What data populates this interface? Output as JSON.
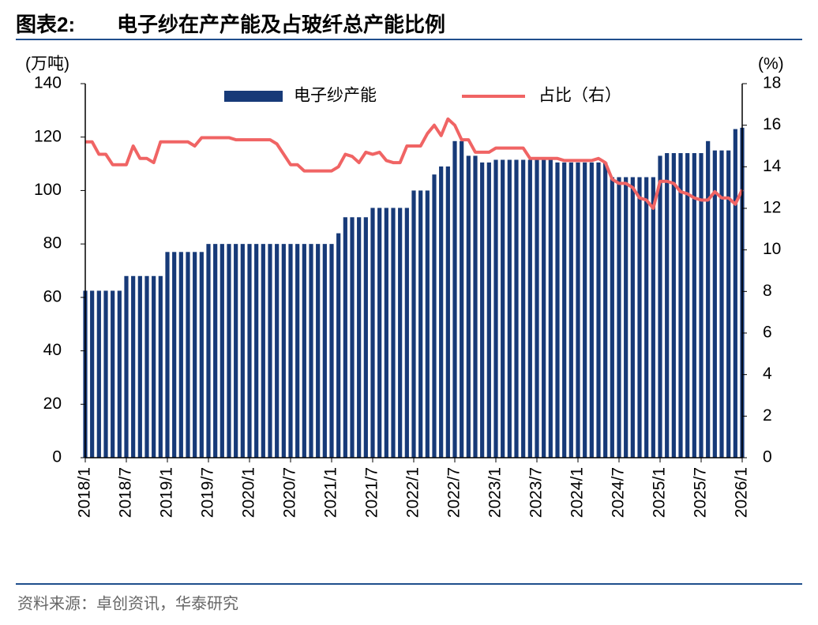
{
  "chart_data": {
    "type": "bar_line",
    "figure_label": "图表2:",
    "title": "电子纱在产产能及占玻纤总产能比例",
    "y_label": "(万吨)",
    "y2_label": "(%)",
    "source": "资料来源：卓创资讯，华泰研究",
    "categories": [
      "2018/1",
      null,
      null,
      null,
      null,
      null,
      "2018/7",
      null,
      null,
      null,
      null,
      null,
      "2019/1",
      null,
      null,
      null,
      null,
      null,
      "2019/7",
      null,
      null,
      null,
      null,
      null,
      "2020/1",
      null,
      null,
      null,
      null,
      null,
      "2020/7",
      null,
      null,
      null,
      null,
      null,
      "2021/1",
      null,
      null,
      null,
      null,
      null,
      "2021/7",
      null,
      null,
      null,
      null,
      null,
      "2022/1",
      null,
      null,
      null,
      null,
      null,
      "2022/7",
      null,
      null,
      null,
      null,
      null,
      "2023/1",
      null,
      null,
      null,
      null,
      null,
      "2023/7",
      null,
      null,
      null,
      null,
      null,
      "2024/1",
      null,
      null,
      null,
      null,
      null,
      "2024/7",
      null,
      null,
      null,
      null,
      null,
      "2025/1",
      null,
      null,
      null,
      null,
      null,
      "2025/7",
      null,
      null,
      null,
      null,
      null,
      "2026/1"
    ],
    "series": [
      {
        "name": "电子纱产能",
        "type": "bar",
        "color": "#173a78",
        "values": [
          62.5,
          62.5,
          62.5,
          62.5,
          62.5,
          62.5,
          68,
          68,
          68,
          68,
          68,
          68,
          77,
          77,
          77,
          77,
          77,
          77,
          80,
          80,
          80,
          80,
          80,
          80,
          80,
          80,
          80,
          80,
          80,
          80,
          80,
          80,
          80,
          80,
          80,
          80,
          80,
          84,
          90,
          90,
          90,
          90,
          93.5,
          93.5,
          93.5,
          93.5,
          93.5,
          93.5,
          100,
          100,
          100,
          106,
          109,
          109,
          118.5,
          118.5,
          113,
          113,
          110.5,
          110.5,
          111.5,
          111.5,
          111.5,
          111.5,
          111.5,
          111.5,
          111.5,
          111.5,
          111.5,
          110.5,
          110.5,
          110.5,
          110.5,
          110.5,
          110.5,
          110.5,
          110.5,
          105,
          105,
          105,
          105,
          105,
          105,
          105,
          113,
          114,
          114,
          114,
          114,
          114,
          114,
          118.5,
          115,
          115,
          115,
          123,
          123.5
        ]
      },
      {
        "name": "占比（右）",
        "type": "line",
        "axis": "y2",
        "color": "#f06464",
        "values": [
          15.2,
          15.2,
          14.6,
          14.6,
          14.1,
          14.1,
          14.1,
          15.0,
          14.4,
          14.4,
          14.2,
          15.2,
          15.2,
          15.2,
          15.2,
          15.2,
          15.0,
          15.4,
          15.4,
          15.4,
          15.4,
          15.4,
          15.3,
          15.3,
          15.3,
          15.3,
          15.3,
          15.3,
          15.1,
          14.6,
          14.1,
          14.1,
          13.8,
          13.8,
          13.8,
          13.8,
          13.8,
          14.0,
          14.6,
          14.5,
          14.2,
          14.7,
          14.6,
          14.7,
          14.3,
          14.2,
          14.2,
          15.0,
          15.0,
          15.0,
          15.6,
          16.0,
          15.5,
          16.3,
          16.0,
          15.3,
          15.3,
          14.7,
          14.7,
          14.7,
          14.9,
          14.9,
          14.9,
          14.9,
          14.9,
          14.4,
          14.4,
          14.4,
          14.4,
          14.4,
          14.3,
          14.3,
          14.3,
          14.3,
          14.3,
          14.4,
          14.2,
          13.4,
          13.2,
          13.2,
          13.0,
          12.5,
          12.4,
          12.0,
          13.3,
          13.3,
          13.2,
          12.8,
          12.7,
          12.5,
          12.4,
          12.4,
          12.8,
          12.5,
          12.5,
          12.2,
          12.9
        ]
      }
    ],
    "ylim": [
      0,
      140
    ],
    "yticks": [
      0,
      20,
      40,
      60,
      80,
      100,
      120,
      140
    ],
    "y2lim": [
      0,
      18
    ],
    "y2ticks": [
      0,
      2,
      4,
      6,
      8,
      10,
      12,
      14,
      16,
      18
    ],
    "grid": false
  }
}
